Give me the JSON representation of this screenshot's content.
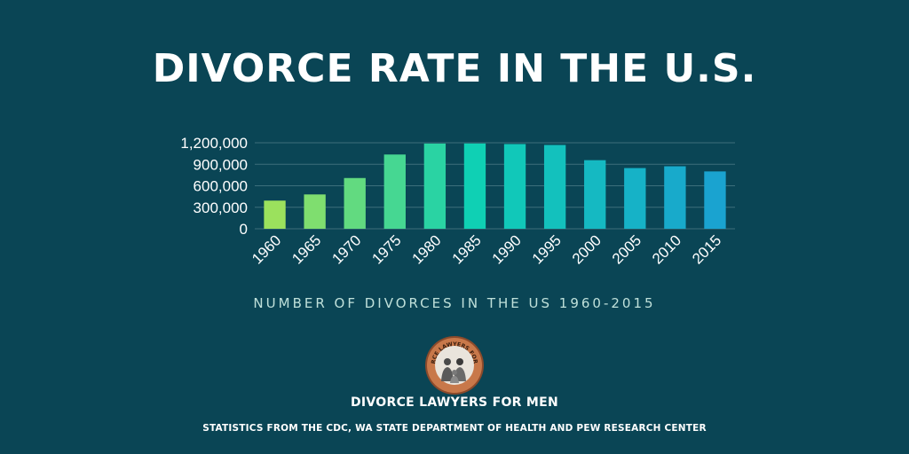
{
  "page": {
    "title": "DIVORCE RATE IN THE U.S.",
    "subtitle": "NUMBER OF DIVORCES IN THE US 1960-2015",
    "brand": "DIVORCE LAWYERS FOR MEN",
    "logo_text": "DIVORCE LAWYERS FOR MEN",
    "source": "STATISTICS FROM THE CDC, WA STATE DEPARTMENT OF HEALTH AND PEW RESEARCH CENTER"
  },
  "colors": {
    "background": "#0a4555",
    "gridline": "#3d6f7c",
    "bar_start": "#9be15d",
    "bar_mid": "#0fd0b4",
    "bar_end": "#1aa3d0",
    "seal_ring": "#a0522d"
  },
  "chart_data": {
    "type": "bar",
    "title": "DIVORCE RATE IN THE U.S.",
    "xlabel": "",
    "ylabel": "",
    "categories": [
      "1960",
      "1965",
      "1970",
      "1975",
      "1980",
      "1985",
      "1990",
      "1995",
      "2000",
      "2005",
      "2010",
      "2015"
    ],
    "values": [
      393000,
      479000,
      708000,
      1036000,
      1189000,
      1190000,
      1182000,
      1169000,
      957000,
      847000,
      872000,
      800000
    ],
    "ylim": [
      0,
      1200000
    ],
    "yticks": [
      0,
      300000,
      600000,
      900000,
      1200000
    ],
    "ytick_labels": [
      "0",
      "300,000",
      "600,000",
      "900,000",
      "1,200,000"
    ],
    "grid": true,
    "legend": "none"
  }
}
